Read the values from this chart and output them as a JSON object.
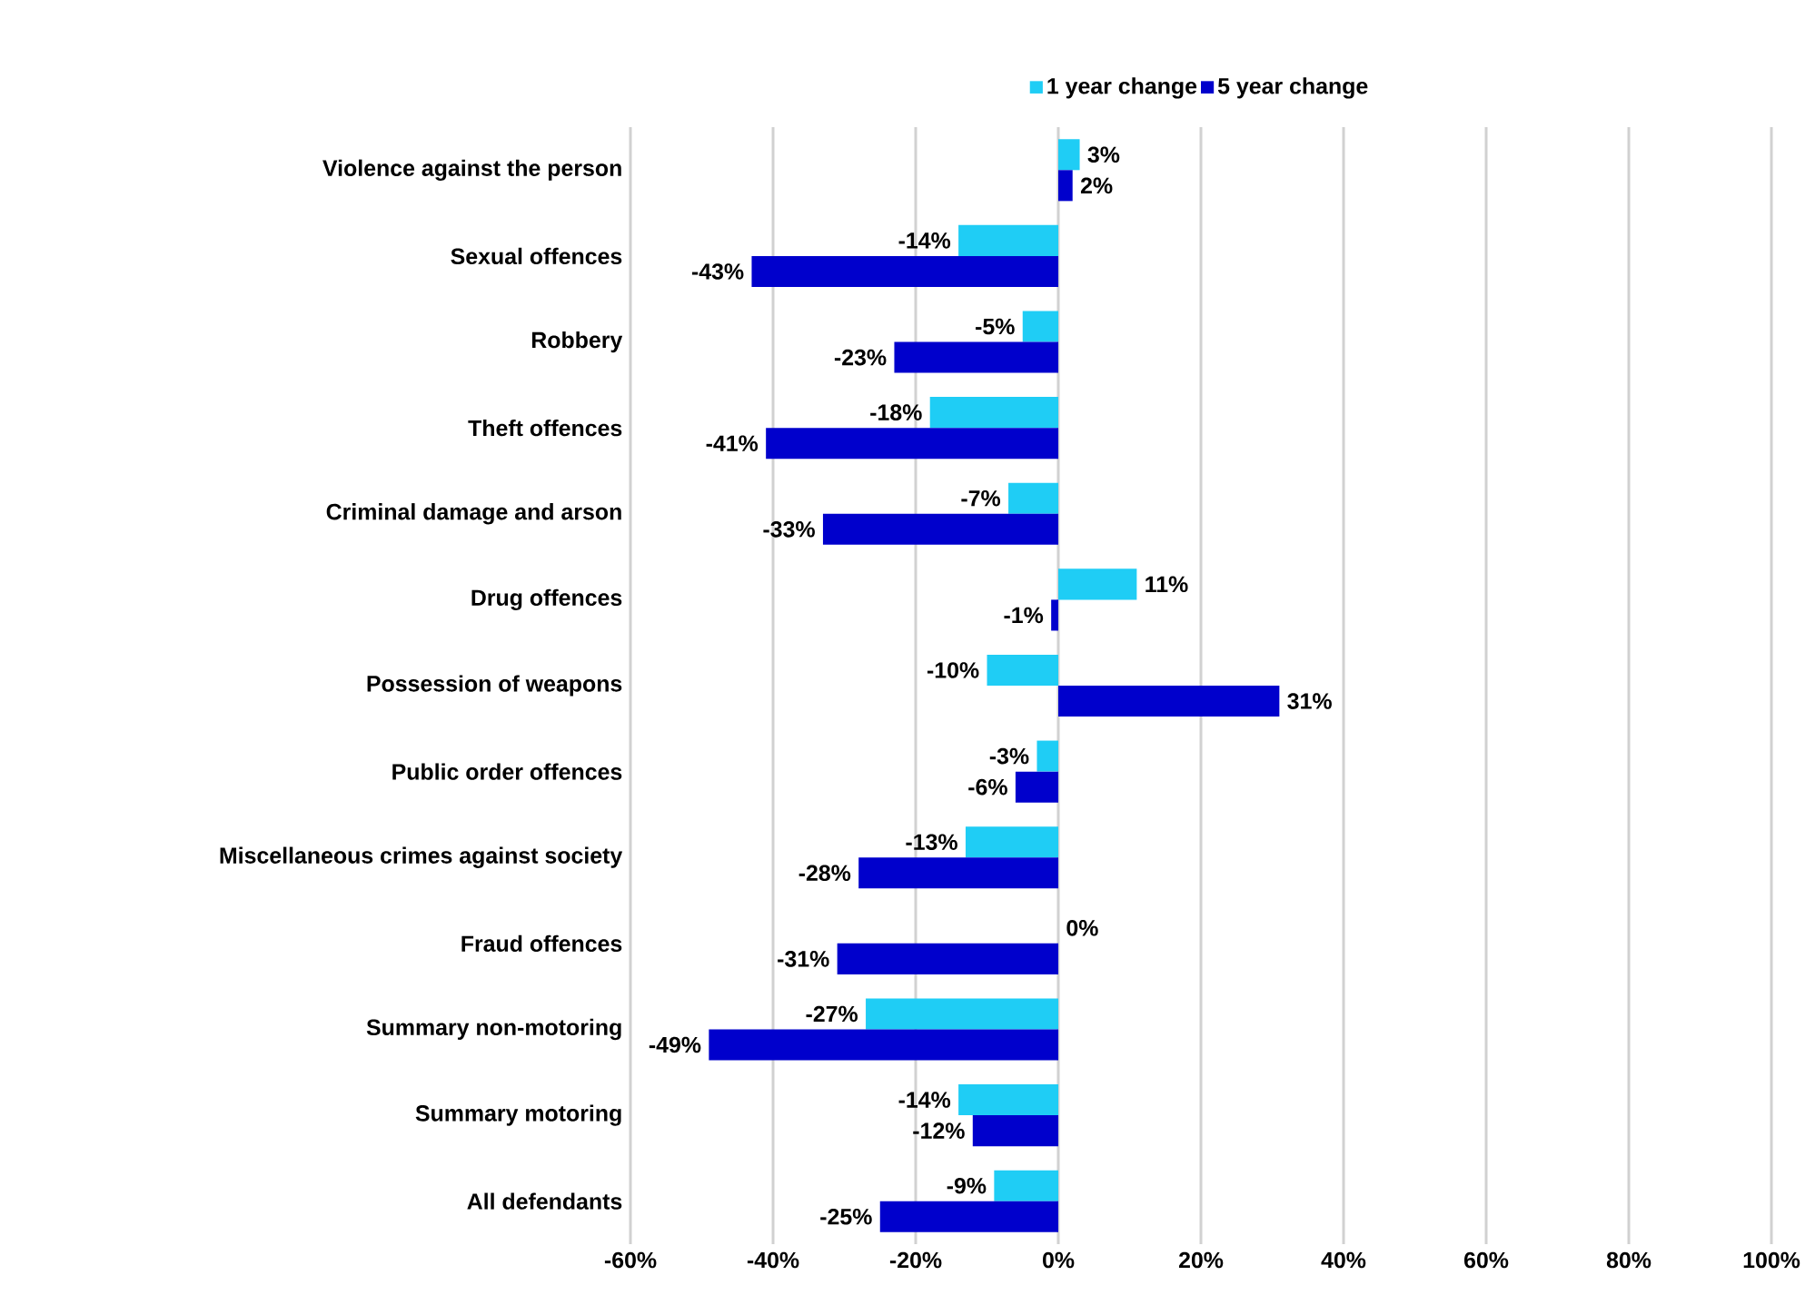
{
  "chart_data": {
    "type": "bar",
    "orientation": "horizontal",
    "categories": [
      "Violence against the person",
      "Sexual offences",
      "Robbery",
      "Theft offences",
      "Criminal damage and arson",
      "Drug offences",
      "Possession of weapons",
      "Public order offences",
      "Miscellaneous crimes against society",
      "Fraud offences",
      "Summary non-motoring",
      "Summary motoring",
      "All defendants"
    ],
    "series": [
      {
        "name": "1 year change",
        "color": "#1fcdf5",
        "values": [
          3,
          -14,
          -5,
          -18,
          -7,
          11,
          -10,
          -3,
          -13,
          0,
          -27,
          -14,
          -9
        ],
        "value_labels": [
          "3%",
          "-14%",
          "-5%",
          "-18%",
          "-7%",
          "11%",
          "-10%",
          "-3%",
          "-13%",
          "0%",
          "-27%",
          "-14%",
          "-9%"
        ]
      },
      {
        "name": "5 year change",
        "color": "#0000cc",
        "values": [
          2,
          -43,
          -23,
          -41,
          -33,
          -1,
          31,
          -6,
          -28,
          -31,
          -49,
          -12,
          -25
        ],
        "value_labels": [
          "2%",
          "-43%",
          "-23%",
          "-41%",
          "-33%",
          "-1%",
          "31%",
          "-6%",
          "-28%",
          "-31%",
          "-49%",
          "-12%",
          "-25%"
        ]
      }
    ],
    "xlim": [
      -60,
      100
    ],
    "xticks": [
      {
        "value": -60,
        "label": "-60%"
      },
      {
        "value": -40,
        "label": "-40%"
      },
      {
        "value": -20,
        "label": "-20%"
      },
      {
        "value": 0,
        "label": "0%"
      },
      {
        "value": 20,
        "label": "20%"
      },
      {
        "value": 40,
        "label": "40%"
      },
      {
        "value": 60,
        "label": "60%"
      },
      {
        "value": 80,
        "label": "80%"
      },
      {
        "value": 100,
        "label": "100%"
      }
    ],
    "grid": "x",
    "legend": "top"
  }
}
